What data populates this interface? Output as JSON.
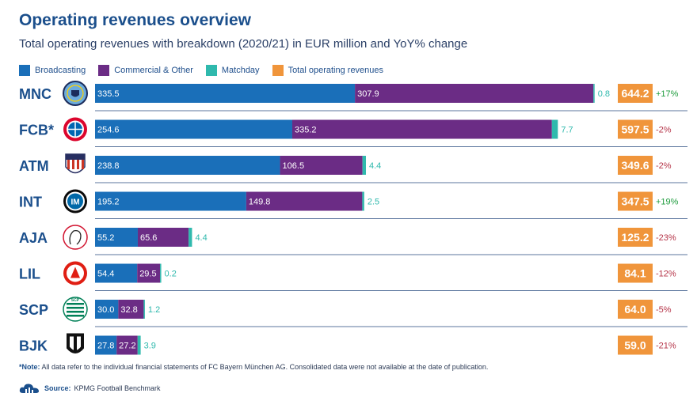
{
  "title": "Operating revenues overview",
  "subtitle": "Total operating revenues with breakdown (2020/21) in EUR million and YoY% change",
  "colors": {
    "broadcasting": "#1a6fb9",
    "commercial": "#6b2c85",
    "matchday": "#2fb9ad",
    "total": "#f0953b",
    "yoy_positive": "#1f9c3e",
    "yoy_negative": "#b53448",
    "club_code": "#1b4f8c"
  },
  "legend": [
    {
      "label": "Broadcasting",
      "color_key": "broadcasting"
    },
    {
      "label": "Commercial & Other",
      "color_key": "commercial"
    },
    {
      "label": "Matchday",
      "color_key": "matchday"
    },
    {
      "label": "Total operating revenues",
      "color_key": "total"
    }
  ],
  "chart_data": {
    "type": "bar",
    "orientation": "horizontal",
    "stacked": true,
    "categories": [
      "MNC",
      "FCB*",
      "ATM",
      "INT",
      "AJA",
      "LIL",
      "SCP",
      "BJK"
    ],
    "series": [
      {
        "name": "Broadcasting",
        "values": [
          335.5,
          254.6,
          238.8,
          195.2,
          55.2,
          54.4,
          30.0,
          27.8
        ]
      },
      {
        "name": "Commercial & Other",
        "values": [
          307.9,
          335.2,
          106.5,
          149.8,
          65.6,
          29.5,
          32.8,
          27.2
        ]
      },
      {
        "name": "Matchday",
        "values": [
          0.8,
          7.7,
          4.4,
          2.5,
          4.4,
          0.2,
          1.2,
          3.9
        ]
      }
    ],
    "value_labels": {
      "Broadcasting": [
        "335.5",
        "254.6",
        "238.8",
        "195.2",
        "55.2",
        "54.4",
        "30.0",
        "27.8"
      ],
      "Commercial & Other": [
        "307.9",
        "335.2",
        "106.5",
        "149.8",
        "65.6",
        "29.5",
        "32.8",
        "27.2"
      ],
      "Matchday": [
        "0.8",
        "7.7",
        "4.4",
        "2.5",
        "4.4",
        "0.2",
        "1.2",
        "3.9"
      ]
    },
    "totals": [
      "644.2",
      "597.5",
      "349.6",
      "347.5",
      "125.2",
      "84.1",
      "64.0",
      "59.0"
    ],
    "yoy": [
      "+17%",
      "-2%",
      "-2%",
      "+19%",
      "-23%",
      "-12%",
      "-5%",
      "-21%"
    ],
    "xlim": [
      0,
      644.2
    ]
  },
  "logos": [
    "mnc-crest-icon",
    "fcb-crest-icon",
    "atm-crest-icon",
    "int-crest-icon",
    "aja-crest-icon",
    "lil-crest-icon",
    "scp-crest-icon",
    "bjk-crest-icon"
  ],
  "note": {
    "prefix": "*Note:",
    "text": " All data refer to the individual financial statements of FC Bayern München AG. Consolidated data were not available at the date of publication."
  },
  "source": {
    "prefix": "Source:",
    "text": "KPMG Football Benchmark"
  }
}
